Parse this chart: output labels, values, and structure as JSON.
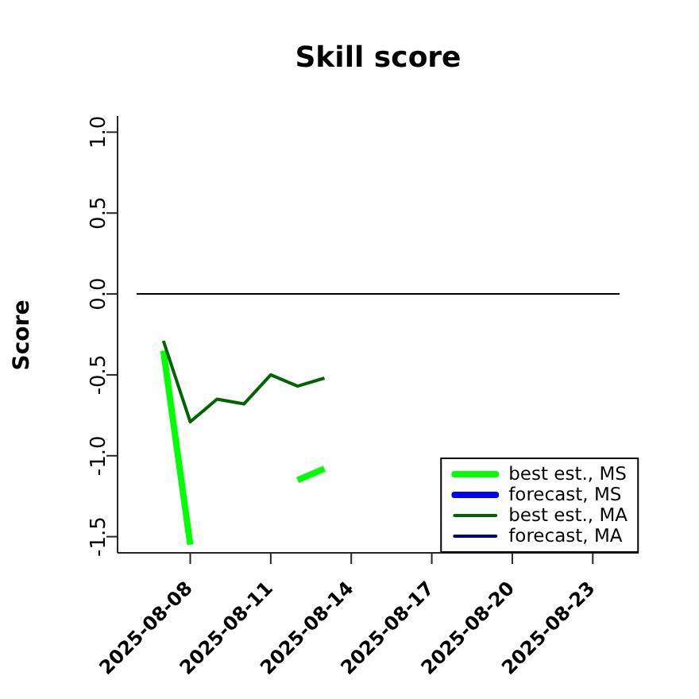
{
  "chart_data": {
    "type": "line",
    "title": "Skill score",
    "ylabel": "Score",
    "xlim": [
      "2025-08-05T07:00",
      "2025-08-24T17:00"
    ],
    "xticks": [
      "2025-08-08",
      "2025-08-11",
      "2025-08-14",
      "2025-08-17",
      "2025-08-20",
      "2025-08-23"
    ],
    "ylim": [
      -1.6,
      1.1
    ],
    "yticks": [
      -1.5,
      {
        "value": -1,
        "label": "-1.0"
      },
      -0.5,
      {
        "value": 0,
        "label": "0.0"
      },
      0.5,
      {
        "value": 1,
        "label": "1.0"
      }
    ],
    "x": [
      "2025-08-07",
      "2025-08-08",
      "2025-08-09",
      "2025-08-10",
      "2025-08-11",
      "2025-08-12",
      "2025-08-13"
    ],
    "series": [
      {
        "name": "best est., MS",
        "color": "#00ff00",
        "values": [
          -0.35,
          -1.55,
          null,
          null,
          null,
          -1.15,
          -1.08
        ]
      },
      {
        "name": "forecast, MS",
        "color": "#0000ff",
        "values": [
          null,
          null,
          null,
          null,
          null,
          null,
          null
        ]
      },
      {
        "name": "best est., MA",
        "color": "#006400",
        "values": [
          -0.29,
          -0.79,
          -0.65,
          -0.68,
          -0.5,
          -0.57,
          -0.52
        ]
      },
      {
        "name": "forecast, MA",
        "color": "#00008b",
        "values": [
          null,
          null,
          null,
          null,
          null,
          null,
          null
        ]
      },
      {
        "type": "line",
        "x": [
          "2025-08-06",
          "2025-08-24"
        ],
        "values": [
          0,
          0
        ],
        "color": "#000000"
      }
    ],
    "legend": "bottom right"
  }
}
